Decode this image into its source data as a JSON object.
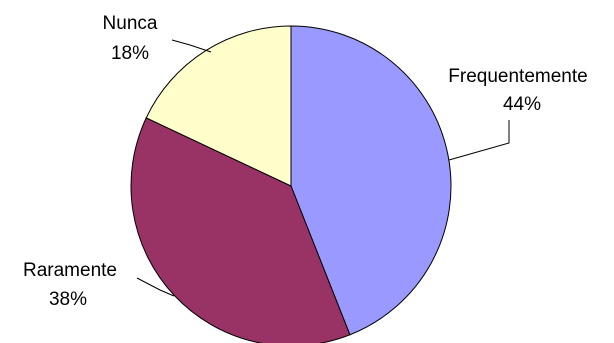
{
  "chart_data": {
    "type": "pie",
    "start_angle": "12 o'clock",
    "direction": "clockwise",
    "slices": [
      {
        "label": "Frequentemente",
        "value": 44,
        "value_label": "44%",
        "color": "#9999ff"
      },
      {
        "label": "Raramente",
        "value": 38,
        "value_label": "38%",
        "color": "#993366"
      },
      {
        "label": "Nunca",
        "value": 18,
        "value_label": "18%",
        "color": "#ffffcc"
      }
    ]
  }
}
